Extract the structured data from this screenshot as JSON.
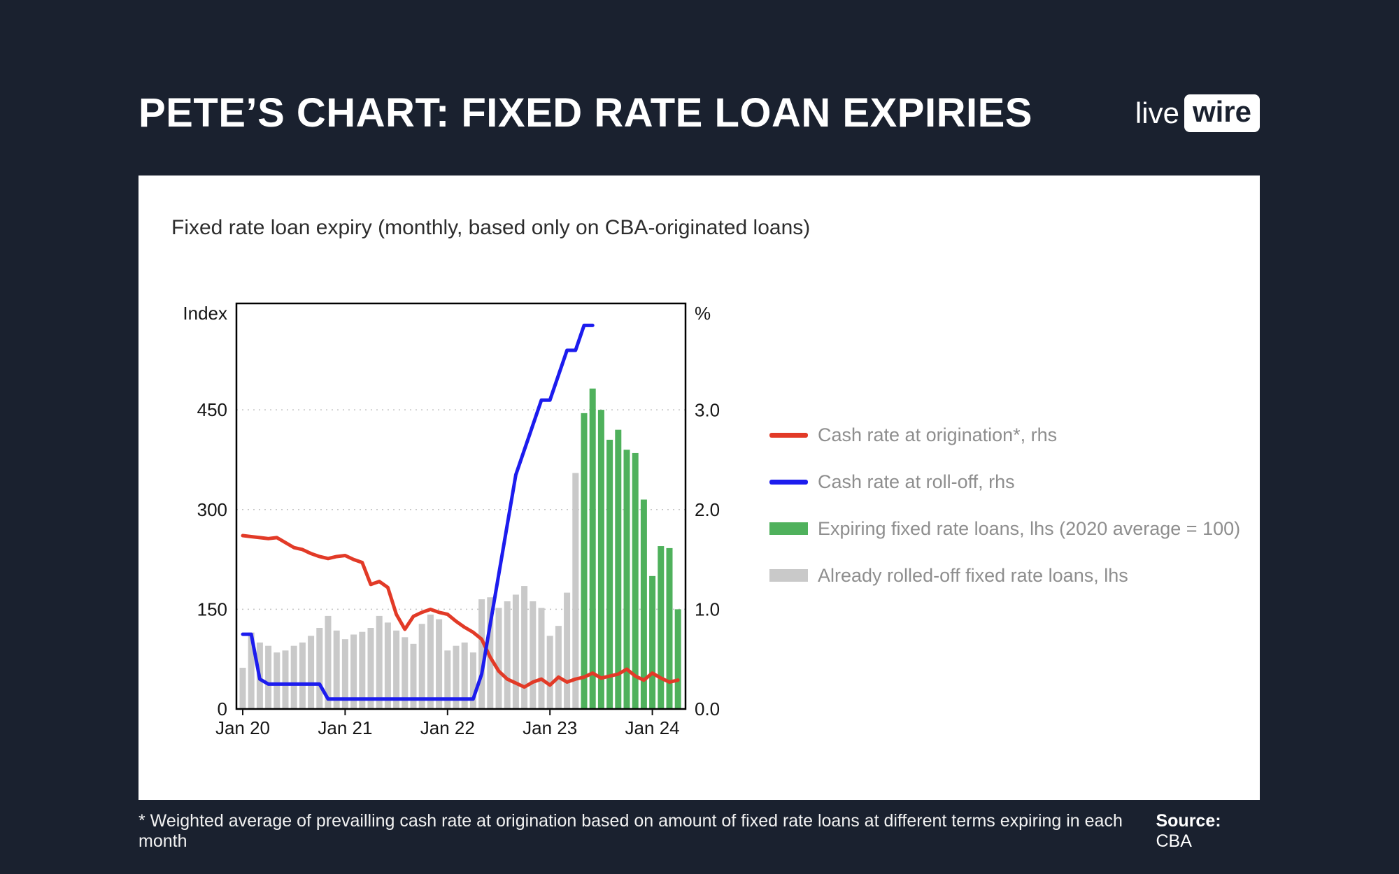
{
  "header": {
    "title": "PETE’S CHART: FIXED RATE LOAN EXPIRIES",
    "logo": {
      "live": "live",
      "wire": "wire"
    }
  },
  "card": {
    "chart_title": "Fixed rate loan expiry (monthly, based only on CBA-originated loans)"
  },
  "legend": [
    {
      "type": "line",
      "color": "#e23a27",
      "icon": "red-line-swatch",
      "label": "Cash rate at origination*, rhs"
    },
    {
      "type": "line",
      "color": "#1c1cee",
      "icon": "blue-line-swatch",
      "label": "Cash rate at roll-off, rhs"
    },
    {
      "type": "box",
      "color": "#4fb15c",
      "icon": "green-box-swatch",
      "label": "Expiring fixed rate loans, lhs (2020 average = 100)"
    },
    {
      "type": "box",
      "color": "#c9c9c9",
      "icon": "gray-box-swatch",
      "label": "Already rolled-off fixed rate loans, lhs"
    }
  ],
  "footer": {
    "footnote": "* Weighted average of prevailling cash rate at origination based on amount of fixed rate loans at different terms expiring in each month",
    "source_label": "Source:",
    "source_value": "CBA"
  },
  "chart_data": {
    "type": "bar",
    "subtype": "monthly bars with two overlaid lines",
    "title": "Fixed rate loan expiry (monthly, based only on CBA-originated loans)",
    "grid": "dotted horizontal gridlines at 150/300/450 (= 1.0/2.0/3.0%)",
    "legend_position": "right of plot",
    "left_axis": {
      "label": "Index",
      "ticks": [
        0,
        150,
        300,
        450
      ],
      "max": 610
    },
    "right_axis": {
      "label": "%",
      "ticks": [
        0,
        1,
        2,
        3
      ],
      "tick_format": "one-decimal",
      "max": 4.07
    },
    "x": {
      "start": "Jan 2020",
      "end": "Apr 2024",
      "step": "month",
      "tick_labels": [
        "Jan 20",
        "Jan 21",
        "Jan 22",
        "Jan 23",
        "Jan 24"
      ],
      "tick_positions": [
        0,
        12,
        24,
        36,
        48
      ]
    },
    "series": [
      {
        "name": "Already rolled-off fixed rate loans, lhs",
        "type": "bar",
        "axis": "left",
        "color": "#c9c9c9",
        "start_index": 0,
        "values": [
          62,
          115,
          100,
          95,
          85,
          88,
          95,
          100,
          110,
          122,
          140,
          118,
          105,
          112,
          116,
          122,
          140,
          130,
          118,
          108,
          98,
          128,
          142,
          135,
          88,
          95,
          100,
          85,
          165,
          168,
          152,
          162,
          172,
          185,
          162,
          152,
          110,
          125,
          175,
          355
        ]
      },
      {
        "name": "Expiring fixed rate loans, lhs (2020 average = 100)",
        "type": "bar",
        "axis": "left",
        "color": "#4fb15c",
        "start_index": 40,
        "values": [
          445,
          482,
          450,
          405,
          420,
          390,
          385,
          315,
          200,
          245,
          242,
          150
        ]
      },
      {
        "name": "Cash rate at origination*, rhs",
        "type": "line",
        "axis": "right",
        "color": "#e23a27",
        "start_index": 0,
        "values": [
          1.74,
          1.73,
          1.72,
          1.71,
          1.72,
          1.67,
          1.62,
          1.6,
          1.56,
          1.53,
          1.51,
          1.53,
          1.54,
          1.5,
          1.47,
          1.25,
          1.28,
          1.22,
          0.95,
          0.8,
          0.93,
          0.97,
          1.0,
          0.97,
          0.95,
          0.88,
          0.82,
          0.77,
          0.7,
          0.52,
          0.38,
          0.3,
          0.26,
          0.22,
          0.27,
          0.3,
          0.24,
          0.32,
          0.27,
          0.3,
          0.32,
          0.36,
          0.31,
          0.33,
          0.35,
          0.4,
          0.33,
          0.29,
          0.36,
          0.31,
          0.27,
          0.29
        ]
      },
      {
        "name": "Cash rate at roll-off, rhs",
        "type": "line",
        "axis": "right",
        "color": "#1c1cee",
        "start_index": 0,
        "values": [
          0.75,
          0.75,
          0.3,
          0.25,
          0.25,
          0.25,
          0.25,
          0.25,
          0.25,
          0.25,
          0.1,
          0.1,
          0.1,
          0.1,
          0.1,
          0.1,
          0.1,
          0.1,
          0.1,
          0.1,
          0.1,
          0.1,
          0.1,
          0.1,
          0.1,
          0.1,
          0.1,
          0.1,
          0.35,
          0.85,
          1.35,
          1.85,
          2.35,
          2.6,
          2.85,
          3.1,
          3.1,
          3.35,
          3.6,
          3.6,
          3.85,
          3.85
        ]
      }
    ]
  }
}
